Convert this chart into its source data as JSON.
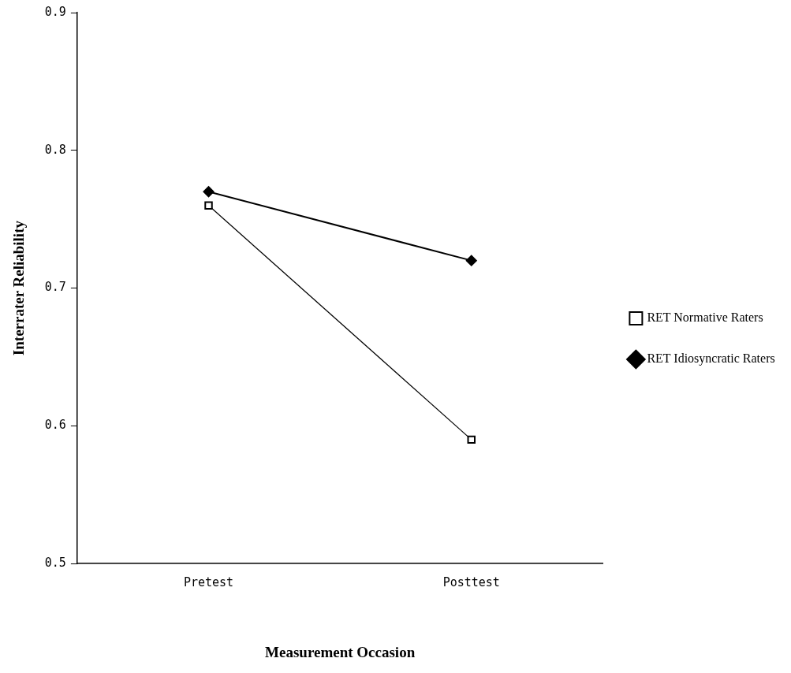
{
  "chart_data": {
    "type": "line",
    "xlabel": "Measurement Occasion",
    "ylabel": "Interrater Reliability",
    "categories": [
      "Pretest",
      "Posttest"
    ],
    "series": [
      {
        "name": "RET Normative Raters",
        "color": "#000000",
        "marker": "square",
        "values": [
          0.76,
          0.59
        ]
      },
      {
        "name": "RET Idiosyncratic Raters",
        "color": "#000000",
        "marker": "diamond",
        "values": [
          0.77,
          0.72
        ]
      }
    ],
    "ylim": [
      0.5,
      0.9
    ],
    "yticks": [
      0.5,
      0.6,
      0.7,
      0.8,
      0.9
    ],
    "grid": false,
    "legend": "right",
    "line_style": "solid"
  }
}
